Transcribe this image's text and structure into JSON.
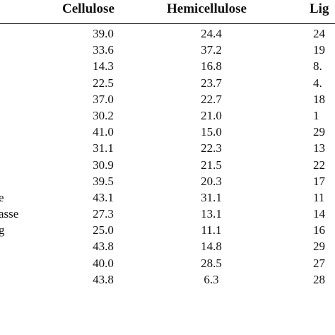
{
  "table": {
    "columns": [
      "",
      "Cellulose",
      "Hemicellulose",
      "Lig"
    ],
    "rows": [
      {
        "label": "",
        "cellulose": "39.0",
        "hemicellulose": "24.4",
        "lignin": "24"
      },
      {
        "label": "",
        "cellulose": "33.6",
        "hemicellulose": "37.2",
        "lignin": "19"
      },
      {
        "label": "",
        "cellulose": "14.3",
        "hemicellulose": "16.8",
        "lignin": "8."
      },
      {
        "label": "",
        "cellulose": "22.5",
        "hemicellulose": "23.7",
        "lignin": "4."
      },
      {
        "label": "",
        "cellulose": "37.0",
        "hemicellulose": "22.7",
        "lignin": "18"
      },
      {
        "label": "",
        "cellulose": "30.2",
        "hemicellulose": "21.0",
        "lignin": "1"
      },
      {
        "label": "",
        "cellulose": "41.0",
        "hemicellulose": "15.0",
        "lignin": "29"
      },
      {
        "label": "",
        "cellulose": "31.1",
        "hemicellulose": "22.3",
        "lignin": "13"
      },
      {
        "label": "",
        "cellulose": "30.9",
        "hemicellulose": "21.5",
        "lignin": "22"
      },
      {
        "label": "",
        "cellulose": "39.5",
        "hemicellulose": "20.3",
        "lignin": "17"
      },
      {
        "label": "e",
        "cellulose": "43.1",
        "hemicellulose": "31.1",
        "lignin": "11"
      },
      {
        "label": "asse",
        "cellulose": "27.3",
        "hemicellulose": "13.1",
        "lignin": "14"
      },
      {
        "label": "g",
        "cellulose": "25.0",
        "hemicellulose": "11.1",
        "lignin": "16"
      },
      {
        "label": "",
        "cellulose": "43.8",
        "hemicellulose": "14.8",
        "lignin": "29"
      },
      {
        "label": "",
        "cellulose": "40.0",
        "hemicellulose": "28.5",
        "lignin": "27"
      },
      {
        "label": "",
        "cellulose": "43.8",
        "hemicellulose": "6.3",
        "lignin": "28"
      }
    ]
  }
}
